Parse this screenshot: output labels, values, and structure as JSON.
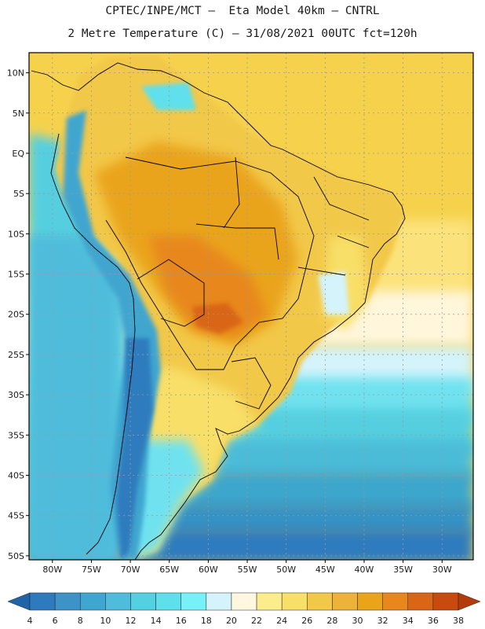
{
  "header": {
    "line1": "CPTEC/INPE/MCT –  Eta Model 40km – CNTRL",
    "line2": "2 Metre Temperature (C) – 31/08/2021 00UTC fct=120h"
  },
  "axes": {
    "lat_labels": [
      "10N",
      "5N",
      "EQ",
      "5S",
      "10S",
      "15S",
      "20S",
      "25S",
      "30S",
      "35S",
      "40S",
      "45S",
      "50S"
    ],
    "lat_values": [
      10,
      5,
      0,
      -5,
      -10,
      -15,
      -20,
      -25,
      -30,
      -35,
      -40,
      -45,
      -50
    ],
    "lon_labels": [
      "80W",
      "75W",
      "70W",
      "65W",
      "60W",
      "55W",
      "50W",
      "45W",
      "40W",
      "35W",
      "30W"
    ],
    "lon_values": [
      -80,
      -75,
      -70,
      -65,
      -60,
      -55,
      -50,
      -45,
      -40,
      -35,
      -30
    ],
    "lat_range": [
      -50.5,
      12.5
    ],
    "lon_range": [
      -83,
      -26
    ]
  },
  "colorbar": {
    "ticks": [
      "4",
      "6",
      "8",
      "10",
      "12",
      "14",
      "16",
      "18",
      "20",
      "22",
      "24",
      "26",
      "28",
      "30",
      "32",
      "34",
      "36",
      "38"
    ],
    "colors": [
      "#1f63a8",
      "#2d7bbd",
      "#3d92c8",
      "#3fa6d0",
      "#4fbcdc",
      "#53d0e2",
      "#5ee0ec",
      "#78f0f8",
      "#d4f3fb",
      "#fff7e0",
      "#fbec8c",
      "#f8df68",
      "#f2c848",
      "#ecb338",
      "#eaa41a",
      "#e8871c",
      "#d96616",
      "#c84a0e",
      "#b33a0a"
    ]
  },
  "map_colors": {
    "ocean": "#ffffff",
    "coast": "#000000",
    "grid": "#9a9a9a"
  }
}
